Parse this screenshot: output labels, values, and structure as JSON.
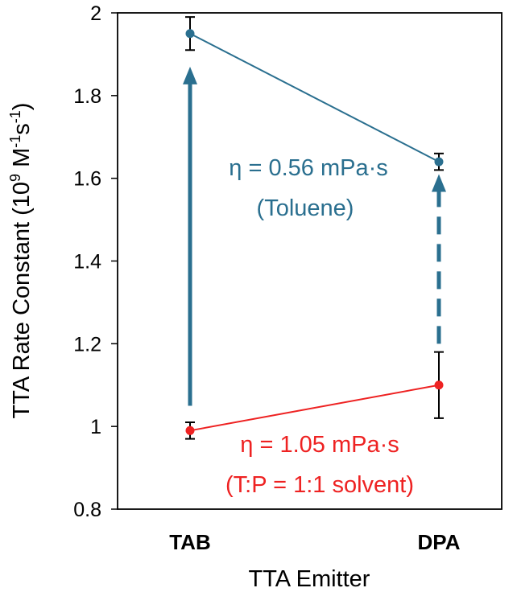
{
  "chart_data": {
    "type": "line",
    "categories": [
      "TAB",
      "DPA"
    ],
    "xlabel": "TTA Emitter",
    "ylabel": {
      "main": "TTA Rate Constant (10",
      "exp1": "9",
      "mid": " M",
      "exp2": "-1",
      "mid2": "s",
      "exp3": "-1",
      "end": ")"
    },
    "ylim": [
      0.8,
      2.0
    ],
    "yticks": [
      0.8,
      1,
      1.2,
      1.4,
      1.6,
      1.8,
      2
    ],
    "ytick_labels": [
      "0.8",
      "1",
      "1.2",
      "1.4",
      "1.6",
      "1.8",
      "2"
    ],
    "grid": false,
    "series": [
      {
        "values": [
          1.95,
          1.64
        ],
        "errors": [
          0.04,
          0.02
        ],
        "color": "#2a6f8f",
        "annotation": [
          "η = 0.56 mPa·s",
          "(Toluene)"
        ]
      },
      {
        "values": [
          0.99,
          1.1
        ],
        "errors": [
          0.02,
          0.08
        ],
        "color": "#ee2222",
        "annotation": [
          "η = 1.05 mPa·s",
          "(T:P = 1:1 solvent)"
        ]
      }
    ],
    "arrows": [
      {
        "category": "TAB",
        "from": 1.05,
        "to": 1.87,
        "style": "solid",
        "color": "#2a6f8f"
      },
      {
        "category": "DPA",
        "from": 1.2,
        "to": 1.61,
        "style": "dashed",
        "color": "#2a6f8f"
      }
    ]
  }
}
